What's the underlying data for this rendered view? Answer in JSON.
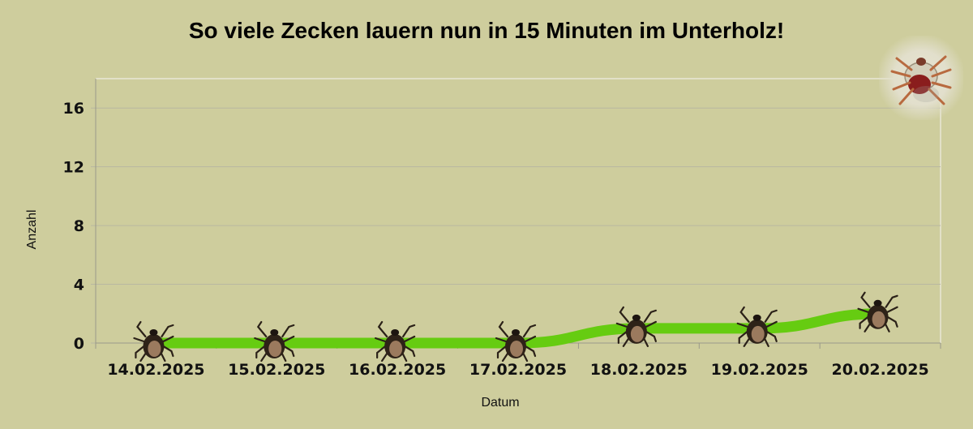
{
  "chart_data": {
    "type": "line",
    "title": "So viele Zecken lauern nun in 15 Minuten im Unterholz!",
    "xlabel": "Datum",
    "ylabel": "Anzahl",
    "categories": [
      "14.02.2025",
      "15.02.2025",
      "16.02.2025",
      "17.02.2025",
      "18.02.2025",
      "19.02.2025",
      "20.02.2025"
    ],
    "series": [
      {
        "values": [
          0,
          0,
          0,
          0,
          1,
          1,
          2
        ]
      }
    ],
    "ylim": [
      0,
      18
    ],
    "yticks": [
      0,
      4,
      8,
      12,
      16
    ],
    "grid": true,
    "legend": "top-right",
    "marker": "tick-icon",
    "colors": {
      "background": "#cecd9d",
      "line": "#66cc11",
      "grid": "#b8b7a2"
    }
  }
}
